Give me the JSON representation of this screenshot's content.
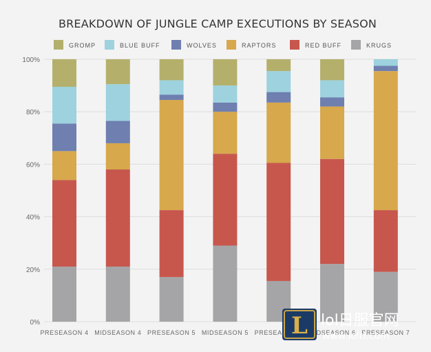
{
  "chart_data": {
    "type": "bar",
    "stacked": true,
    "normalized": true,
    "title": "BREAKDOWN OF JUNGLE CAMP EXECUTIONS BY SEASON",
    "xlabel": "",
    "ylabel": "",
    "ylim": [
      0,
      100
    ],
    "yticks": [
      "0%",
      "20%",
      "40%",
      "60%",
      "80%",
      "100%"
    ],
    "grid": true,
    "legend_position": "top",
    "categories": [
      "PRESEASON 4",
      "MIDSEASON 4",
      "PRESEASON 5",
      "MIDSEASON 5",
      "PRESEASON 6",
      "MIDSEASON 6",
      "PRESEASON 7"
    ],
    "series": [
      {
        "name": "KRUGS",
        "color": "#a5a5a7",
        "values": [
          21,
          21,
          17,
          29,
          15.5,
          22,
          19
        ]
      },
      {
        "name": "RED BUFF",
        "color": "#c7574d",
        "values": [
          33,
          37,
          25.5,
          35,
          45,
          40,
          23.5
        ]
      },
      {
        "name": "RAPTORS",
        "color": "#d7a84c",
        "values": [
          11,
          10,
          42,
          16,
          23,
          20,
          53
        ]
      },
      {
        "name": "WOLVES",
        "color": "#6e7fb0",
        "values": [
          10.5,
          8.5,
          2,
          3.5,
          4,
          3.5,
          2
        ]
      },
      {
        "name": "BLUE BUFF",
        "color": "#9dd2de",
        "values": [
          14,
          14,
          5.5,
          6.5,
          8,
          6.5,
          2.5
        ]
      },
      {
        "name": "GROMP",
        "color": "#b4b06c",
        "values": [
          10.5,
          9.5,
          8,
          10,
          4.5,
          8,
          0
        ]
      }
    ],
    "legend_order": [
      "GROMP",
      "BLUE BUFF",
      "WOLVES",
      "RAPTORS",
      "RED BUFF",
      "KRUGS"
    ]
  },
  "watermark": {
    "logo_letter": "L",
    "site_name": "lol日服官网",
    "site_url": "www.lolrf.com"
  }
}
